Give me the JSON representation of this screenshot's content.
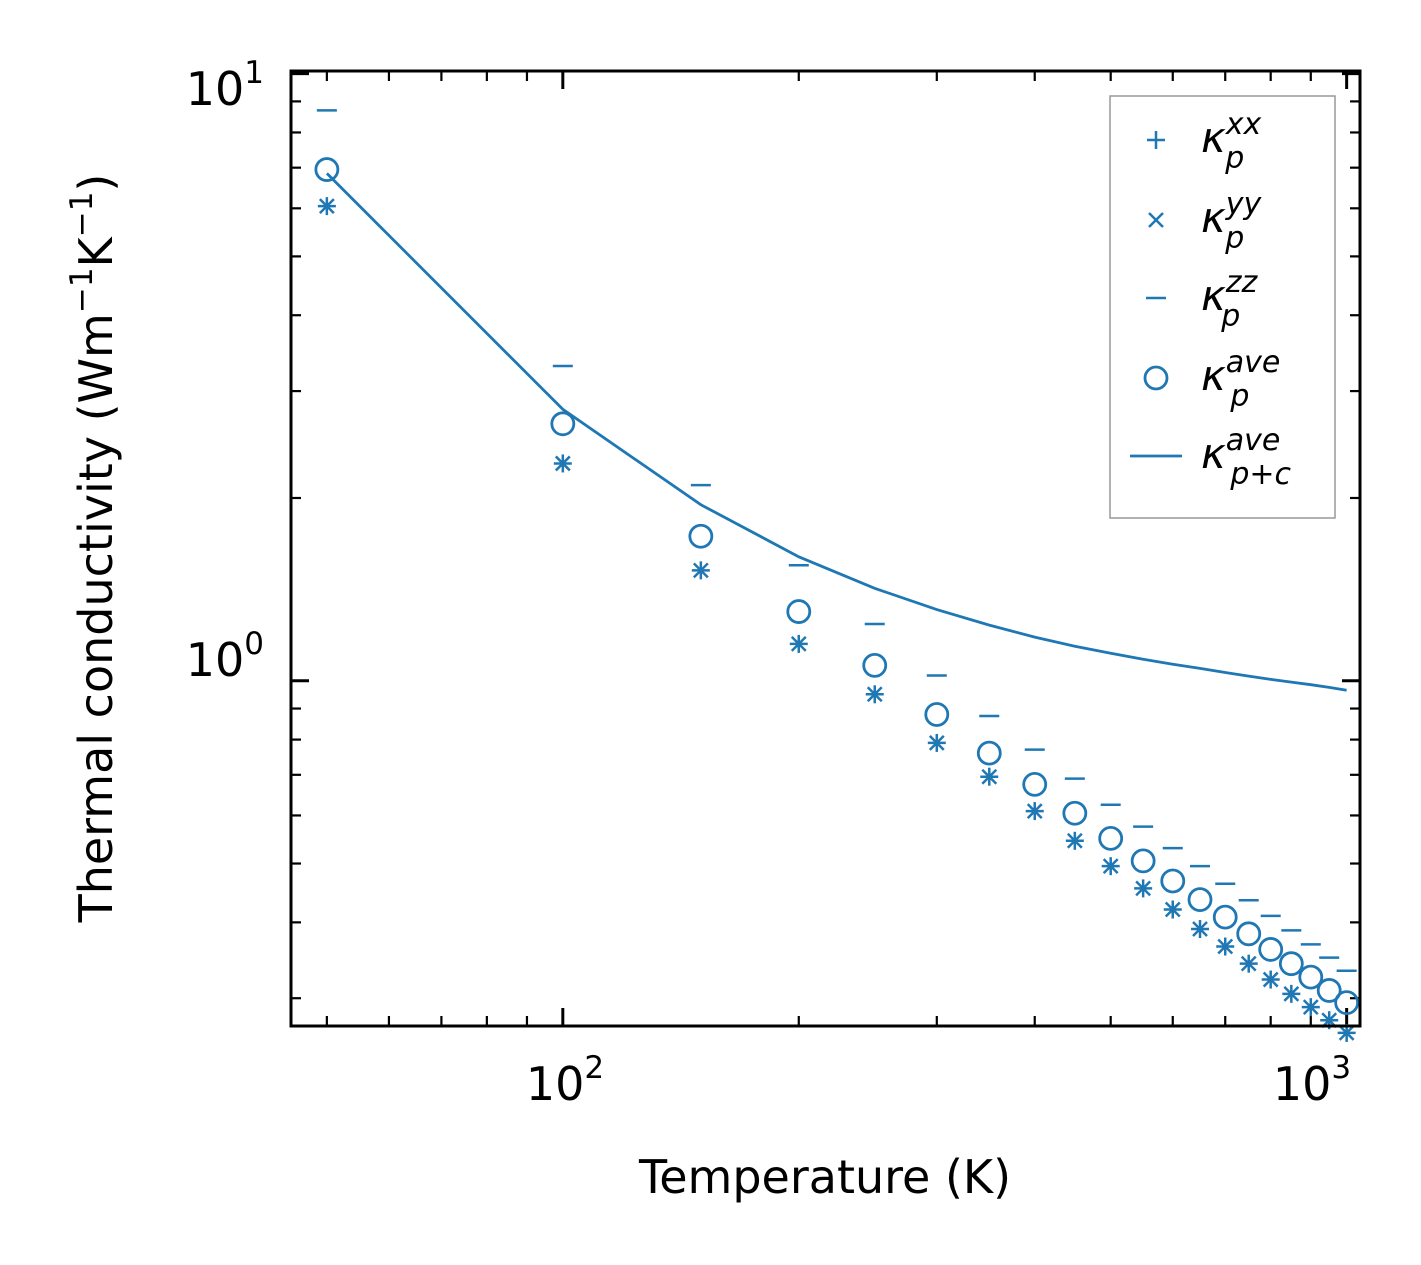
{
  "chart_data": {
    "type": "scatter",
    "title": "",
    "xlabel": "Temperature (K)",
    "ylabel_parts": [
      "Thermal conductivity (Wm",
      "−1",
      "K",
      "−1",
      ")"
    ],
    "x_scale": "log",
    "y_scale": "log",
    "xlim": [
      45,
      1040
    ],
    "ylim": [
      0.27,
      10.1
    ],
    "x_ticks": [
      {
        "base": "10",
        "exp": "2",
        "value": 100
      },
      {
        "base": "10",
        "exp": "3",
        "value": 1000
      }
    ],
    "y_ticks": [
      {
        "base": "10",
        "exp": "0",
        "value": 1
      },
      {
        "base": "10",
        "exp": "1",
        "value": 10
      }
    ],
    "color": "#1f77b4",
    "x": [
      50,
      100,
      150,
      200,
      250,
      300,
      350,
      400,
      450,
      500,
      550,
      600,
      650,
      700,
      750,
      800,
      850,
      900,
      950,
      1000
    ],
    "series": [
      {
        "key": "xx",
        "name_symbol": "κ",
        "name_sub": "p",
        "name_sup": "xx",
        "marker": "plus",
        "values": [
          6.05,
          2.28,
          1.52,
          1.15,
          0.95,
          0.79,
          0.695,
          0.61,
          0.545,
          0.495,
          0.455,
          0.42,
          0.39,
          0.365,
          0.342,
          0.322,
          0.305,
          0.29,
          0.276,
          0.263
        ]
      },
      {
        "key": "yy",
        "name_symbol": "κ",
        "name_sub": "p",
        "name_sup": "yy",
        "marker": "x",
        "values": [
          6.05,
          2.28,
          1.52,
          1.15,
          0.95,
          0.79,
          0.695,
          0.61,
          0.545,
          0.495,
          0.455,
          0.42,
          0.39,
          0.365,
          0.342,
          0.322,
          0.305,
          0.29,
          0.276,
          0.263
        ]
      },
      {
        "key": "zz",
        "name_symbol": "κ",
        "name_sub": "p",
        "name_sup": "zz",
        "marker": "hline",
        "values": [
          8.7,
          3.3,
          2.1,
          1.55,
          1.24,
          1.02,
          0.875,
          0.77,
          0.69,
          0.625,
          0.575,
          0.53,
          0.495,
          0.463,
          0.435,
          0.41,
          0.388,
          0.368,
          0.35,
          0.333
        ]
      },
      {
        "key": "ave",
        "name_symbol": "κ",
        "name_sub": "p",
        "name_sup": "ave",
        "marker": "circle",
        "values": [
          6.95,
          2.65,
          1.73,
          1.3,
          1.06,
          0.88,
          0.76,
          0.675,
          0.605,
          0.55,
          0.505,
          0.468,
          0.436,
          0.408,
          0.383,
          0.361,
          0.342,
          0.325,
          0.309,
          0.295
        ]
      },
      {
        "key": "ave_pc",
        "name_symbol": "κ",
        "name_sub": "p+c",
        "name_sup": "ave",
        "marker": "line",
        "values": [
          6.85,
          2.8,
          1.95,
          1.6,
          1.42,
          1.31,
          1.235,
          1.18,
          1.14,
          1.11,
          1.085,
          1.065,
          1.048,
          1.032,
          1.018,
          1.005,
          0.995,
          0.985,
          0.975,
          0.965
        ]
      }
    ],
    "legend_position": "top-right"
  }
}
